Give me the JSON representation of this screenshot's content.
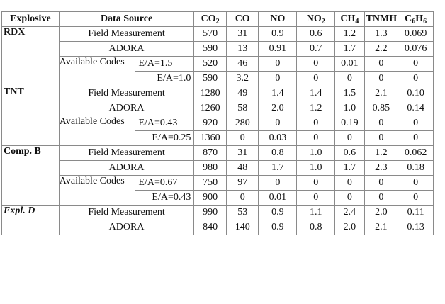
{
  "table": {
    "headers": {
      "explosive": "Explosive",
      "data_source": "Data Source",
      "species": [
        {
          "base": "CO",
          "sub": "2",
          "tail": ""
        },
        {
          "base": "CO",
          "sub": "",
          "tail": ""
        },
        {
          "base": "NO",
          "sub": "",
          "tail": ""
        },
        {
          "base": "NO",
          "sub": "2",
          "tail": ""
        },
        {
          "base": "CH",
          "sub": "4",
          "tail": ""
        },
        {
          "base": "TNMH",
          "sub": "",
          "tail": ""
        },
        {
          "base": "C",
          "sub": "6",
          "tail": "H",
          "sub2": "6"
        }
      ]
    },
    "groups": [
      {
        "name": "RDX",
        "italic": false,
        "rows": [
          {
            "source": "Field Measurement",
            "values": [
              "570",
              "31",
              "0.9",
              "0.6",
              "1.2",
              "1.3",
              "0.069"
            ]
          },
          {
            "source": "ADORA",
            "values": [
              "590",
              "13",
              "0.91",
              "0.7",
              "1.7",
              "2.2",
              "0.076"
            ]
          },
          {
            "codes_label": "Available Codes",
            "ea": "E/A=1.5",
            "values": [
              "520",
              "46",
              "0",
              "0",
              "0.01",
              "0",
              "0"
            ]
          },
          {
            "ea": "E/A=1.0",
            "values": [
              "590",
              "3.2",
              "0",
              "0",
              "0",
              "0",
              "0"
            ]
          }
        ]
      },
      {
        "name": "TNT",
        "italic": false,
        "rows": [
          {
            "source": "Field Measurement",
            "values": [
              "1280",
              "49",
              "1.4",
              "1.4",
              "1.5",
              "2.1",
              "0.10"
            ]
          },
          {
            "source": "ADORA",
            "values": [
              "1260",
              "58",
              "2.0",
              "1.2",
              "1.0",
              "0.85",
              "0.14"
            ]
          },
          {
            "codes_label": "Available Codes",
            "ea": "E/A=0.43",
            "values": [
              "920",
              "280",
              "0",
              "0",
              "0.19",
              "0",
              "0"
            ]
          },
          {
            "ea": "E/A=0.25",
            "values": [
              "1360",
              "0",
              "0.03",
              "0",
              "0",
              "0",
              "0"
            ]
          }
        ]
      },
      {
        "name": "Comp. B",
        "italic": false,
        "rows": [
          {
            "source": "Field Measurement",
            "values": [
              "870",
              "31",
              "0.8",
              "1.0",
              "0.6",
              "1.2",
              "0.062"
            ]
          },
          {
            "source": "ADORA",
            "values": [
              "980",
              "48",
              "1.7",
              "1.0",
              "1.7",
              "2.3",
              "0.18"
            ]
          },
          {
            "codes_label": "Available Codes",
            "ea": "E/A=0.67",
            "values": [
              "750",
              "97",
              "0",
              "0",
              "0",
              "0",
              "0"
            ]
          },
          {
            "ea": "E/A=0.43",
            "values": [
              "900",
              "0",
              "0.01",
              "0",
              "0",
              "0",
              "0"
            ]
          }
        ]
      },
      {
        "name": "Expl. D",
        "italic": true,
        "rows": [
          {
            "source": "Field Measurement",
            "values": [
              "990",
              "53",
              "0.9",
              "1.1",
              "2.4",
              "2.0",
              "0.11"
            ]
          },
          {
            "source": "ADORA",
            "values": [
              "840",
              "140",
              "0.9",
              "0.8",
              "2.0",
              "2.1",
              "0.13"
            ]
          }
        ]
      }
    ]
  }
}
